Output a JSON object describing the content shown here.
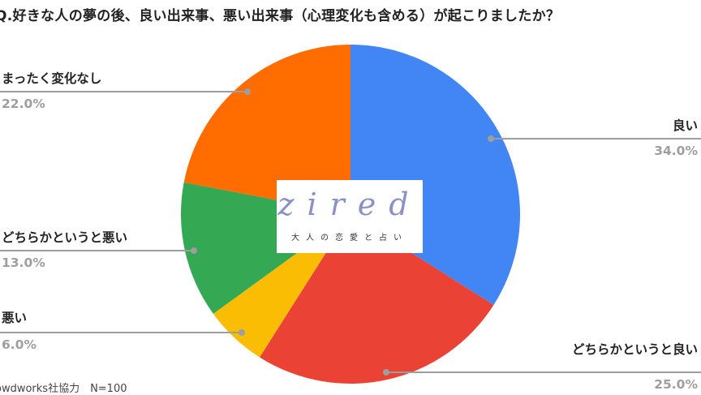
{
  "title": "Q.好きな人の夢の後、良い出来事、悪い出来事（心理変化も含める）が起こりましたか？",
  "footer": "owdworks社協力　N=100",
  "logo": {
    "word": "zired",
    "tagline": "大人の恋愛と占い"
  },
  "chart_data": {
    "type": "pie",
    "title": "Q.好きな人の夢の後、良い出来事、悪い出来事（心理変化も含める）が起こりましたか？",
    "start": "top, clockwise",
    "legend": "leader-line labels",
    "slices": [
      {
        "label": "良い",
        "value": 34.0,
        "pct_label": "34.0%",
        "color": "#4285F4"
      },
      {
        "label": "どちらかというと良い",
        "value": 25.0,
        "pct_label": "25.0%",
        "color": "#EA4335"
      },
      {
        "label": "悪い",
        "value": 6.0,
        "pct_label": "6.0%",
        "color": "#FBBC04"
      },
      {
        "label": "どちらかというと悪い",
        "value": 13.0,
        "pct_label": "13.0%",
        "color": "#34A853"
      },
      {
        "label": "まったく変化なし",
        "value": 22.0,
        "pct_label": "22.0%",
        "color": "#FF6D01"
      }
    ]
  }
}
